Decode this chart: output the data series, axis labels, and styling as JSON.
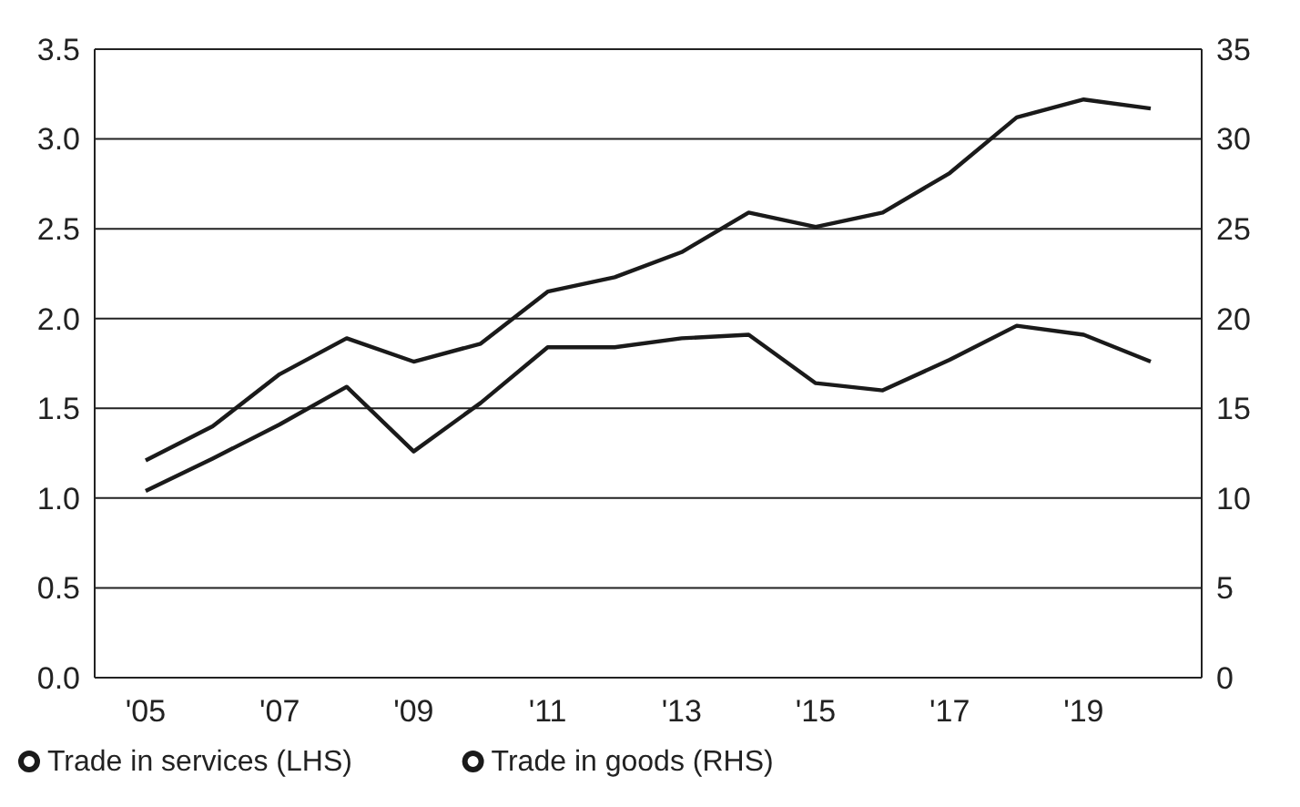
{
  "chart_data": {
    "type": "line",
    "categories": [
      "'05",
      null,
      "'07",
      null,
      "'09",
      null,
      "'11",
      null,
      "'13",
      null,
      "'15",
      null,
      "'17",
      null,
      "'19",
      null
    ],
    "series": [
      {
        "name": "Trade in services (LHS)",
        "color": "#1a1a1a",
        "values": [
          1.21,
          1.4,
          1.69,
          1.89,
          1.76,
          1.86,
          2.15,
          2.23,
          2.37,
          2.59,
          2.51,
          2.59,
          2.81,
          3.12,
          3.22,
          3.17
        ]
      },
      {
        "name": "Trade in goods (RHS)",
        "color": "#1a1a1a",
        "axis": "y2",
        "values": [
          10.4,
          12.2,
          14.1,
          16.2,
          12.6,
          15.3,
          18.4,
          18.4,
          18.9,
          19.1,
          16.4,
          16.0,
          17.7,
          19.6,
          19.1,
          17.6
        ]
      }
    ],
    "ylim": [
      0,
      3.5
    ],
    "yticks": [
      {
        "value": 0,
        "label": "0.0"
      },
      0.5,
      {
        "value": 1,
        "label": "1.0"
      },
      1.5,
      {
        "value": 2,
        "label": "2.0"
      },
      2.5,
      {
        "value": 3,
        "label": "3.0"
      },
      3.5
    ],
    "y2lim": [
      0,
      35
    ],
    "y2ticks": [
      0,
      5,
      10,
      15,
      20,
      25,
      30,
      35
    ],
    "grid": "y",
    "legend": "bottom left",
    "marker": "none",
    "line_style": "solid"
  }
}
